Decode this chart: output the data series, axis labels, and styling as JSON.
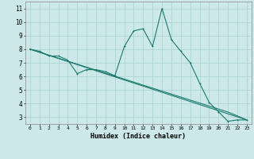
{
  "xlabel": "Humidex (Indice chaleur)",
  "bg_color": "#cce8e8",
  "grid_color": "#add4d4",
  "line_color": "#1a7a6e",
  "xlim": [
    -0.5,
    23.5
  ],
  "ylim": [
    2.5,
    11.5
  ],
  "xticks": [
    0,
    1,
    2,
    3,
    4,
    5,
    6,
    7,
    8,
    9,
    10,
    11,
    12,
    13,
    14,
    15,
    16,
    17,
    18,
    19,
    20,
    21,
    22,
    23
  ],
  "yticks": [
    3,
    4,
    5,
    6,
    7,
    8,
    9,
    10,
    11
  ],
  "series1_x": [
    0,
    1,
    2,
    3,
    4,
    5,
    6,
    7,
    8,
    9,
    10,
    11,
    12,
    13,
    14,
    15,
    16,
    17,
    18,
    19,
    20,
    21,
    22,
    23
  ],
  "series1_y": [
    8.0,
    7.85,
    7.5,
    7.5,
    7.2,
    6.2,
    6.5,
    6.5,
    6.35,
    6.05,
    8.2,
    9.35,
    9.5,
    8.2,
    11.0,
    8.7,
    7.85,
    7.0,
    5.5,
    4.1,
    3.4,
    2.7,
    2.8,
    2.8
  ],
  "series2_x": [
    0,
    23
  ],
  "series2_y": [
    8.0,
    2.8
  ],
  "series3_x": [
    0,
    1,
    2,
    3,
    4,
    5,
    6,
    7,
    8,
    9,
    10,
    11,
    12,
    13,
    14,
    15,
    16,
    17,
    18,
    19,
    20,
    21,
    22,
    23
  ],
  "series3_y": [
    8.0,
    7.78,
    7.56,
    7.34,
    7.12,
    6.9,
    6.68,
    6.46,
    6.24,
    6.02,
    5.8,
    5.58,
    5.36,
    5.14,
    4.92,
    4.7,
    4.48,
    4.26,
    4.04,
    3.82,
    3.6,
    3.38,
    3.1,
    2.8
  ]
}
